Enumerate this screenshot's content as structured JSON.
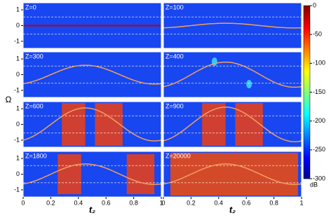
{
  "chart_data": [
    {
      "type": "heatmap",
      "title": "Z=0",
      "xlim": [
        0,
        1
      ],
      "ylim": [
        -1.45,
        1.45
      ],
      "yticks": [
        -1,
        0,
        1
      ]
    },
    {
      "type": "heatmap",
      "title": "Z=100",
      "xlim": [
        0,
        1
      ],
      "ylim": [
        -1.45,
        1.45
      ]
    },
    {
      "type": "heatmap",
      "title": "Z=300",
      "xlim": [
        0,
        1
      ],
      "ylim": [
        -1.45,
        1.45
      ],
      "yticks": [
        -1,
        0,
        1
      ]
    },
    {
      "type": "heatmap",
      "title": "Z=400",
      "xlim": [
        0,
        1
      ],
      "ylim": [
        -1.45,
        1.45
      ]
    },
    {
      "type": "heatmap",
      "title": "Z=600",
      "xlim": [
        0,
        1
      ],
      "ylim": [
        -1.45,
        1.45
      ],
      "yticks": [
        -1,
        0,
        1
      ],
      "ylabel": "Ω"
    },
    {
      "type": "heatmap",
      "title": "Z=900",
      "xlim": [
        0,
        1
      ],
      "ylim": [
        -1.45,
        1.45
      ]
    },
    {
      "type": "heatmap",
      "title": "Z=1800",
      "xlim": [
        0,
        1
      ],
      "ylim": [
        -1.45,
        1.45
      ],
      "yticks": [
        -1,
        0,
        1
      ],
      "xticks": [
        0,
        0.2,
        0.4,
        0.6,
        0.8,
        1
      ],
      "xlabel": "t₂"
    },
    {
      "type": "heatmap",
      "title": "Z=20000",
      "xlim": [
        0,
        1
      ],
      "ylim": [
        -1.45,
        1.45
      ],
      "xticks": [
        0,
        0.2,
        0.4,
        0.6,
        0.8,
        1
      ],
      "xlabel": "t₂"
    },
    {
      "type": "colorbar",
      "ylim": [
        -300,
        0
      ],
      "yticks": [
        -300,
        -250,
        -200,
        -150,
        -100,
        -50,
        0
      ],
      "label": "dB"
    }
  ]
}
